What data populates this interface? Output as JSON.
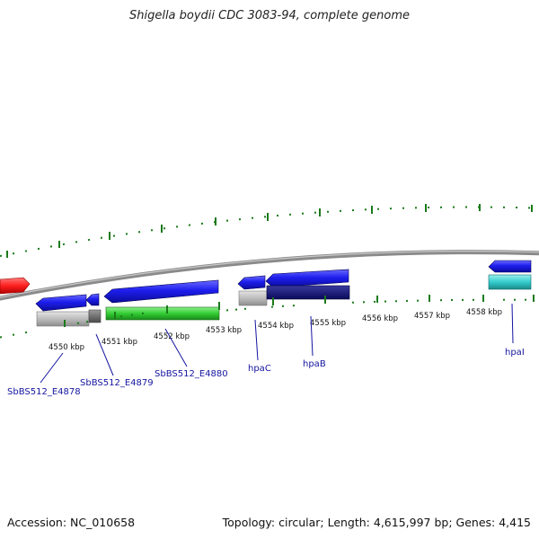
{
  "title": "Shigella boydii CDC 3083-94, complete genome",
  "footer": {
    "accession": "Accession: NC_010658",
    "topology": "Topology: circular; Length: 4,615,997 bp; Genes: 4,415"
  },
  "ticks": [
    "4550 kbp",
    "4551 kbp",
    "4552 kbp",
    "4553 kbp",
    "4554 kbp",
    "4555 kbp",
    "4556 kbp",
    "4557 kbp",
    "4558 kbp"
  ],
  "gene_labels": [
    "SbBS512_E4878",
    "SbBS512_E4879",
    "SbBS512_E4880",
    "hpaC",
    "hpaB",
    "hpaI"
  ],
  "colors": {
    "backbone": "#8a8a8a",
    "tick_marks": "#1a7a1a",
    "gene_red": "#ff2020",
    "gene_blue": "#1e1eee",
    "gene_navy": "#12127a",
    "gene_green": "#33cc33",
    "gene_cyan": "#33cccc",
    "gene_grey": "#b4b4b4",
    "gene_darkgrey": "#6e6e6e",
    "label_text": "#1414a0"
  }
}
